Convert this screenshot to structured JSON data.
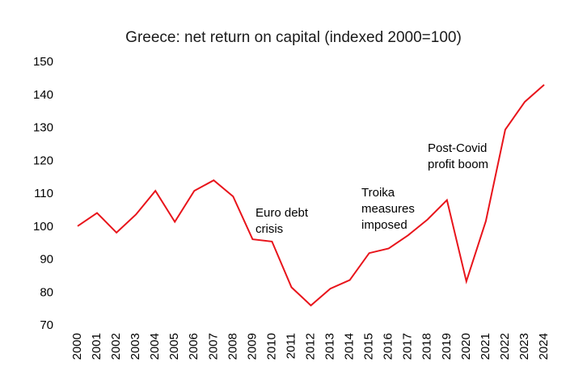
{
  "chart_data": {
    "type": "line",
    "title": "Greece: net return on capital (indexed 2000=100)",
    "xlabel": "",
    "ylabel": "",
    "ylim": [
      70,
      150
    ],
    "yticks": [
      70,
      80,
      90,
      100,
      110,
      120,
      130,
      140,
      150
    ],
    "grid": false,
    "legend": "none",
    "categories": [
      "2000",
      "2001",
      "2002",
      "2003",
      "2004",
      "2005",
      "2006",
      "2007",
      "2008",
      "2009",
      "2010",
      "2011",
      "2012",
      "2013",
      "2014",
      "2015",
      "2016",
      "2017",
      "2018",
      "2019",
      "2020",
      "2021",
      "2022",
      "2023",
      "2024"
    ],
    "series": [
      {
        "color": "#e8141b",
        "values": [
          100,
          104,
          98,
          103.5,
          110.7,
          101.3,
          110.7,
          113.9,
          109,
          96,
          95.3,
          81.4,
          75.9,
          81,
          83.6,
          91.8,
          93.2,
          97.2,
          102,
          107.9,
          83.2,
          101.5,
          129.3,
          137.7,
          142.9
        ]
      }
    ],
    "annotations": [
      {
        "id": "euro-debt-crisis",
        "lines": [
          "Euro debt",
          "crisis"
        ]
      },
      {
        "id": "troika-measures",
        "lines": [
          "Troika",
          "measures",
          "imposed"
        ]
      },
      {
        "id": "post-covid-boom",
        "lines": [
          "Post-Covid",
          "profit boom"
        ]
      }
    ]
  }
}
